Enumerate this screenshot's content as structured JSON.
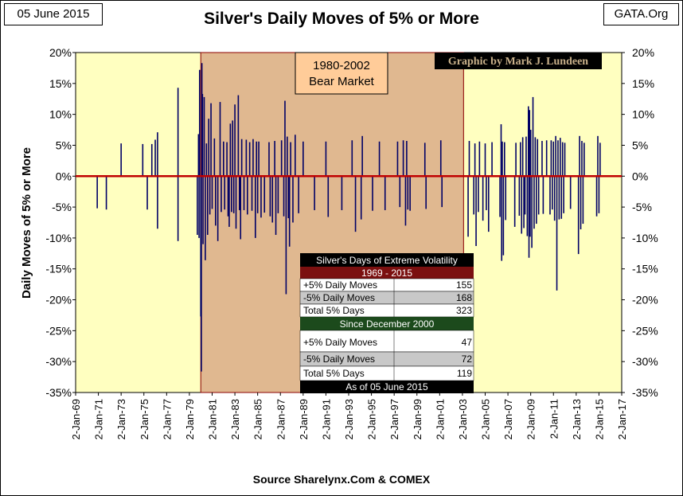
{
  "header": {
    "date": "05 June 2015",
    "site": "GATA.Org",
    "title": "Silver's Daily Moves of 5% or More",
    "source": "Source Sharelynx.Com & COMEX",
    "credit": "Graphic by Mark J. Lundeen"
  },
  "colors": {
    "plot_bg": "#ffffc0",
    "bear_bg": "#e0b890",
    "bar": "#000066",
    "zero_line": "#c00000",
    "box_bg": "#ffcc99"
  },
  "chart_data": {
    "type": "bar",
    "title": "Silver's Daily Moves of 5% or More",
    "ylabel": "Daily  Moves  of  5%  or  More",
    "ylim": [
      -35,
      20
    ],
    "y_ticks": [
      "20%",
      "15%",
      "10%",
      "5%",
      "0%",
      "-5%",
      "-10%",
      "-15%",
      "-20%",
      "-25%",
      "-30%",
      "-35%"
    ],
    "x_ticks": [
      "2-Jan-69",
      "2-Jan-71",
      "2-Jan-73",
      "2-Jan-75",
      "2-Jan-77",
      "2-Jan-79",
      "2-Jan-81",
      "2-Jan-83",
      "2-Jan-85",
      "2-Jan-87",
      "2-Jan-89",
      "2-Jan-91",
      "2-Jan-93",
      "2-Jan-95",
      "2-Jan-97",
      "2-Jan-99",
      "2-Jan-01",
      "2-Jan-03",
      "2-Jan-05",
      "2-Jan-07",
      "2-Jan-09",
      "2-Jan-11",
      "2-Jan-13",
      "2-Jan-15",
      "2-Jan-17"
    ],
    "x_range_years": [
      1969,
      2017
    ],
    "grid": false,
    "shaded_region": {
      "label_line1": "1980-2002",
      "label_line2": "Bear Market",
      "start_year": 1980.0,
      "end_year": 2003.1
    },
    "x_units": "decimal year",
    "y_units": "percent",
    "points": [
      [
        1970.9,
        -5.2
      ],
      [
        1971.7,
        -5.4
      ],
      [
        1973.0,
        5.3
      ],
      [
        1974.9,
        5.2
      ],
      [
        1975.3,
        -5.4
      ],
      [
        1975.7,
        5.2
      ],
      [
        1976.0,
        5.9
      ],
      [
        1976.2,
        7.1
      ],
      [
        1976.2,
        -8.5
      ],
      [
        1978.0,
        14.3
      ],
      [
        1978.0,
        -10.5
      ],
      [
        1979.7,
        -9.5
      ],
      [
        1979.8,
        6.8
      ],
      [
        1979.85,
        -10.0
      ],
      [
        1979.9,
        17.2
      ],
      [
        1980.0,
        -22.7
      ],
      [
        1980.05,
        -31.6
      ],
      [
        1980.1,
        18.3
      ],
      [
        1980.15,
        13.3
      ],
      [
        1980.2,
        -11.0
      ],
      [
        1980.3,
        12.8
      ],
      [
        1980.4,
        -13.6
      ],
      [
        1980.5,
        5.3
      ],
      [
        1980.6,
        -9.5
      ],
      [
        1980.7,
        9.3
      ],
      [
        1980.8,
        -6.2
      ],
      [
        1980.9,
        11.8
      ],
      [
        1981.0,
        -5.3
      ],
      [
        1981.2,
        6.1
      ],
      [
        1981.3,
        -8.0
      ],
      [
        1981.5,
        -10.5
      ],
      [
        1981.7,
        12.0
      ],
      [
        1981.8,
        -5.8
      ],
      [
        1982.0,
        5.6
      ],
      [
        1982.1,
        -5.4
      ],
      [
        1982.3,
        5.5
      ],
      [
        1982.4,
        -6.5
      ],
      [
        1982.5,
        -8.2
      ],
      [
        1982.6,
        8.5
      ],
      [
        1982.7,
        -5.8
      ],
      [
        1982.8,
        9.0
      ],
      [
        1982.9,
        -6.0
      ],
      [
        1983.0,
        11.6
      ],
      [
        1983.1,
        -8.5
      ],
      [
        1983.3,
        13.1
      ],
      [
        1983.4,
        -5.5
      ],
      [
        1983.5,
        -10.2
      ],
      [
        1983.6,
        6.0
      ],
      [
        1983.8,
        -5.5
      ],
      [
        1984.0,
        5.9
      ],
      [
        1984.1,
        -6.2
      ],
      [
        1984.3,
        5.5
      ],
      [
        1984.5,
        -5.6
      ],
      [
        1984.6,
        6.0
      ],
      [
        1984.8,
        -10.0
      ],
      [
        1984.9,
        5.6
      ],
      [
        1985.0,
        -6.0
      ],
      [
        1985.1,
        5.6
      ],
      [
        1985.3,
        -6.7
      ],
      [
        1985.6,
        -5.9
      ],
      [
        1986.0,
        5.5
      ],
      [
        1986.1,
        -6.5
      ],
      [
        1986.3,
        -7.5
      ],
      [
        1986.5,
        5.7
      ],
      [
        1986.6,
        -9.5
      ],
      [
        1986.8,
        -6.0
      ],
      [
        1987.1,
        5.8
      ],
      [
        1987.3,
        -6.5
      ],
      [
        1987.4,
        12.2
      ],
      [
        1987.5,
        -19.1
      ],
      [
        1987.6,
        6.4
      ],
      [
        1987.7,
        -6.8
      ],
      [
        1987.8,
        -11.4
      ],
      [
        1987.9,
        5.5
      ],
      [
        1988.1,
        -7.5
      ],
      [
        1988.3,
        6.7
      ],
      [
        1988.6,
        -6.0
      ],
      [
        1989.0,
        5.6
      ],
      [
        1990.0,
        -5.5
      ],
      [
        1991.0,
        5.6
      ],
      [
        1991.2,
        -6.6
      ],
      [
        1992.4,
        -5.5
      ],
      [
        1993.3,
        5.8
      ],
      [
        1993.6,
        -9.0
      ],
      [
        1994.1,
        -7.0
      ],
      [
        1994.2,
        6.5
      ],
      [
        1995.1,
        -5.6
      ],
      [
        1995.7,
        5.6
      ],
      [
        1996.2,
        -5.5
      ],
      [
        1997.3,
        5.6
      ],
      [
        1997.5,
        -5.0
      ],
      [
        1997.8,
        5.8
      ],
      [
        1998.0,
        -8.0
      ],
      [
        1998.1,
        5.7
      ],
      [
        1998.2,
        -5.4
      ],
      [
        1998.4,
        -5.6
      ],
      [
        1999.7,
        5.4
      ],
      [
        1999.8,
        -5.3
      ],
      [
        2001.1,
        5.8
      ],
      [
        2001.2,
        -5.0
      ],
      [
        2003.5,
        -9.8
      ],
      [
        2003.6,
        5.7
      ],
      [
        2004.0,
        -6.2
      ],
      [
        2004.1,
        5.3
      ],
      [
        2004.2,
        -11.3
      ],
      [
        2004.4,
        -5.8
      ],
      [
        2004.5,
        5.6
      ],
      [
        2004.8,
        -7.2
      ],
      [
        2005.0,
        5.3
      ],
      [
        2005.1,
        -5.5
      ],
      [
        2005.3,
        -9.0
      ],
      [
        2005.6,
        5.5
      ],
      [
        2006.3,
        -6.6
      ],
      [
        2006.4,
        8.4
      ],
      [
        2006.45,
        -13.7
      ],
      [
        2006.5,
        5.6
      ],
      [
        2006.6,
        -12.8
      ],
      [
        2006.7,
        5.5
      ],
      [
        2006.8,
        -7.1
      ],
      [
        2007.6,
        -8.2
      ],
      [
        2007.7,
        5.4
      ],
      [
        2008.0,
        -6.4
      ],
      [
        2008.1,
        5.5
      ],
      [
        2008.2,
        -9.3
      ],
      [
        2008.3,
        6.3
      ],
      [
        2008.4,
        -8.4
      ],
      [
        2008.5,
        -6.2
      ],
      [
        2008.6,
        6.4
      ],
      [
        2008.7,
        -9.7
      ],
      [
        2008.8,
        11.3
      ],
      [
        2008.85,
        -13.2
      ],
      [
        2008.9,
        10.7
      ],
      [
        2008.95,
        -9.8
      ],
      [
        2009.0,
        7.5
      ],
      [
        2009.1,
        -11.6
      ],
      [
        2009.2,
        12.8
      ],
      [
        2009.3,
        -8.5
      ],
      [
        2009.4,
        6.3
      ],
      [
        2009.5,
        -7.7
      ],
      [
        2009.6,
        6.0
      ],
      [
        2009.7,
        -6.2
      ],
      [
        2010.0,
        5.7
      ],
      [
        2010.1,
        -6.1
      ],
      [
        2010.4,
        5.8
      ],
      [
        2010.7,
        -6.2
      ],
      [
        2010.8,
        5.8
      ],
      [
        2010.9,
        -5.4
      ],
      [
        2011.0,
        5.6
      ],
      [
        2011.1,
        -7.2
      ],
      [
        2011.2,
        6.5
      ],
      [
        2011.3,
        -18.5
      ],
      [
        2011.4,
        5.8
      ],
      [
        2011.5,
        -7.0
      ],
      [
        2011.6,
        6.2
      ],
      [
        2011.7,
        -6.9
      ],
      [
        2011.8,
        5.5
      ],
      [
        2011.9,
        -6.0
      ],
      [
        2012.0,
        5.4
      ],
      [
        2012.5,
        -5.3
      ],
      [
        2013.2,
        -12.6
      ],
      [
        2013.3,
        6.5
      ],
      [
        2013.4,
        -8.6
      ],
      [
        2013.5,
        5.7
      ],
      [
        2013.6,
        -7.7
      ],
      [
        2013.7,
        5.4
      ],
      [
        2014.8,
        -6.5
      ],
      [
        2014.9,
        6.5
      ],
      [
        2015.0,
        -6.0
      ],
      [
        2015.1,
        5.4
      ]
    ]
  },
  "volatility_table": {
    "title": "Silver's Days of Extreme Volatility",
    "period1": "1969 - 2015",
    "rows1": [
      {
        "label": "+5% Daily Moves",
        "value": "155"
      },
      {
        "label": "-5% Daily Moves",
        "value": "168"
      },
      {
        "label": "Total 5% Days",
        "value": "323"
      }
    ],
    "period2": "Since December 2000",
    "rows2": [
      {
        "label": "+5% Daily Moves",
        "value": "47"
      },
      {
        "label": "-5% Daily Moves",
        "value": "72"
      },
      {
        "label": "Total 5% Days",
        "value": "119"
      }
    ],
    "footer": "As of 05 June 2015"
  }
}
